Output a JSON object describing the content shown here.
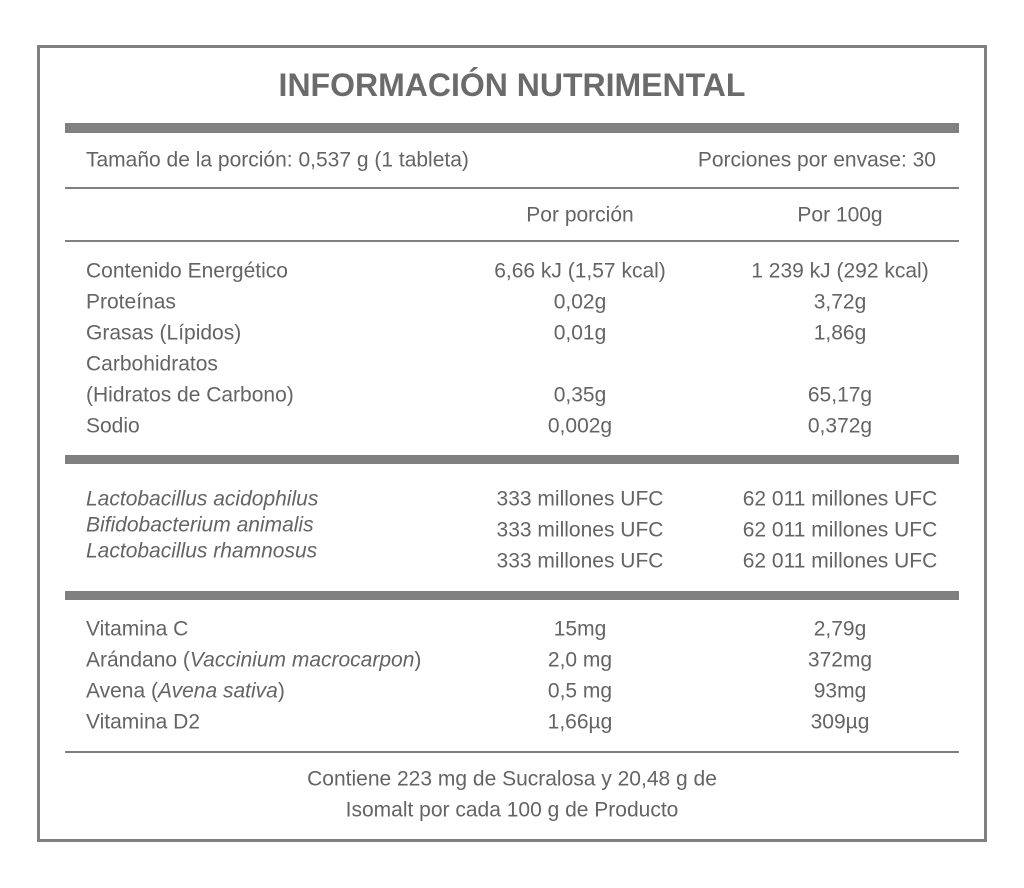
{
  "header": {
    "title": "INFORMACIÓN NUTRIMENTAL"
  },
  "serving": {
    "size": "Tamaño de la porción: 0,537 g (1 tableta)",
    "per_container": "Porciones por envase: 30"
  },
  "columns": [
    "Por porción",
    "Por 100g"
  ],
  "nutrients": [
    {
      "name": [
        "Contenido Energético"
      ],
      "per_portion": "6,66 kJ (1,57 kcal)",
      "per_100g": "1 239 kJ (292 kcal)"
    },
    {
      "name": [
        "Proteínas"
      ],
      "per_portion": "0,02g",
      "per_100g": "3,72g"
    },
    {
      "name": [
        "Grasas (Lípidos)"
      ],
      "per_portion": "0,01g",
      "per_100g": "1,86g"
    },
    {
      "name": [
        "Carbohidratos",
        "(Hidratos de Carbono)"
      ],
      "per_portion": "0,35g",
      "per_100g": "65,17g"
    },
    {
      "name": [
        "Sodio"
      ],
      "per_portion": "0,002g",
      "per_100g": "0,372g"
    }
  ],
  "probiotics": [
    {
      "name": "Lactobacillus acidophilus",
      "per_portion": "333 millones UFC",
      "per_100g": "62 011 millones UFC"
    },
    {
      "name": "Bifidobacterium animalis",
      "per_portion": "333 millones UFC",
      "per_100g": "62 011 millones UFC"
    },
    {
      "name": "Lactobacillus rhamnosus",
      "per_portion": "333 millones UFC",
      "per_100g": "62 011 millones UFC"
    }
  ],
  "others": [
    {
      "name": [
        "Vitamina C"
      ],
      "per_portion": "15mg",
      "per_100g": "2,79g"
    },
    {
      "name": [
        "Arándano (",
        "Vaccinium macrocarpon",
        ")"
      ],
      "per_portion": "2,0 mg",
      "per_100g": "372mg"
    },
    {
      "name": [
        "Avena (",
        "Avena sativa",
        ")"
      ],
      "per_portion": "0,5 mg",
      "per_100g": "93mg"
    },
    {
      "name": [
        "Vitamina D2"
      ],
      "per_portion": "1,66µg",
      "per_100g": "309µg"
    }
  ],
  "footer": [
    "Contiene 223 mg de Sucralosa y 20,48 g de",
    "Isomalt por cada 100 g de Producto"
  ]
}
